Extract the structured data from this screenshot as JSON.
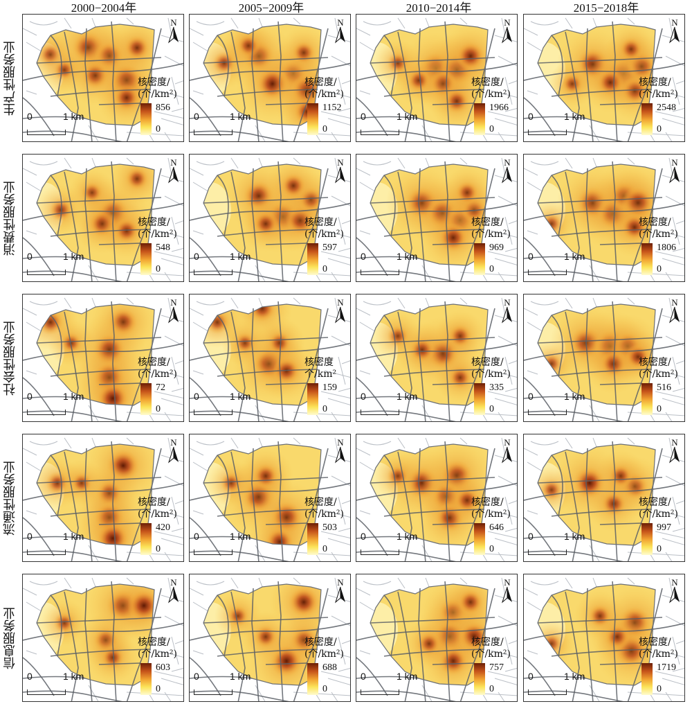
{
  "columns": [
    {
      "label": "2000−2004年"
    },
    {
      "label": "2005−2009年"
    },
    {
      "label": "2010−2014年"
    },
    {
      "label": "2015−2018年"
    }
  ],
  "rows": [
    {
      "label": "生产性服务业",
      "panels": [
        {
          "title_line1": "核密度/",
          "title_line2": "(个/km²)",
          "max": "856",
          "min": "0"
        },
        {
          "title_line1": "核密度/",
          "title_line2": "(个/km²)",
          "max": "1152",
          "min": "0"
        },
        {
          "title_line1": "核密度/",
          "title_line2": "(个/km²)",
          "max": "1966",
          "min": "0"
        },
        {
          "title_line1": "核密度/",
          "title_line2": "(个/km²)",
          "max": "2548",
          "min": "0"
        }
      ]
    },
    {
      "label": "消费性服务业",
      "panels": [
        {
          "title_line1": "核密度/",
          "title_line2": "(个/km²)",
          "max": "548",
          "min": "0"
        },
        {
          "title_line1": "核密度/",
          "title_line2": "(个/km²)",
          "max": "597",
          "min": "0"
        },
        {
          "title_line1": "核密度/",
          "title_line2": "(个/km²)",
          "max": "969",
          "min": "0"
        },
        {
          "title_line1": "核密度/",
          "title_line2": "(个/km²)",
          "max": "1806",
          "min": "0"
        }
      ]
    },
    {
      "label": "社会性服务业",
      "panels": [
        {
          "title_line1": "核密度/",
          "title_line2": "(个/km²)",
          "max": "72",
          "min": "0"
        },
        {
          "title_line1": "核密度",
          "title_line2": "个/km²",
          "max": "159",
          "min": "0"
        },
        {
          "title_line1": "核密度/",
          "title_line2": "(个/km²)",
          "max": "335",
          "min": "0"
        },
        {
          "title_line1": "核密度/",
          "title_line2": "(个/km²)",
          "max": "516",
          "min": "0"
        }
      ]
    },
    {
      "label": "流通性服务业",
      "panels": [
        {
          "title_line1": "核密度/",
          "title_line2": "(个/km²)",
          "max": "420",
          "min": "0"
        },
        {
          "title_line1": "核密度/",
          "title_line2": "(个/km²)",
          "max": "503",
          "min": "0"
        },
        {
          "title_line1": "核密度/",
          "title_line2": "(个/km²)",
          "max": "646",
          "min": "0"
        },
        {
          "title_line1": "核密度/",
          "title_line2": "(个/km²)",
          "max": "997",
          "min": "0"
        }
      ]
    },
    {
      "label": "信息服务业",
      "panels": [
        {
          "title_line1": "核密度/",
          "title_line2": "(个/km²)",
          "max": "603",
          "min": "0"
        },
        {
          "title_line1": "核密度/",
          "title_line2": "(个/km²)",
          "max": "688",
          "min": "0"
        },
        {
          "title_line1": "核密度/",
          "title_line2": "(个/km²)",
          "max": "757",
          "min": "0"
        },
        {
          "title_line1": "核密度/",
          "title_line2": "(个/km²)",
          "max": "1719",
          "min": "0"
        }
      ]
    }
  ],
  "scale_bar": {
    "zero": "0",
    "length_label": "1 km"
  },
  "north_arrow": {
    "letter": "N",
    "icon": "north-arrow-icon"
  },
  "colors": {
    "low": "#fffbcf",
    "mid": "#f6b63e",
    "high": "#6b1f05",
    "road": "#5a5f66",
    "minor_road": "#b9bec5"
  }
}
